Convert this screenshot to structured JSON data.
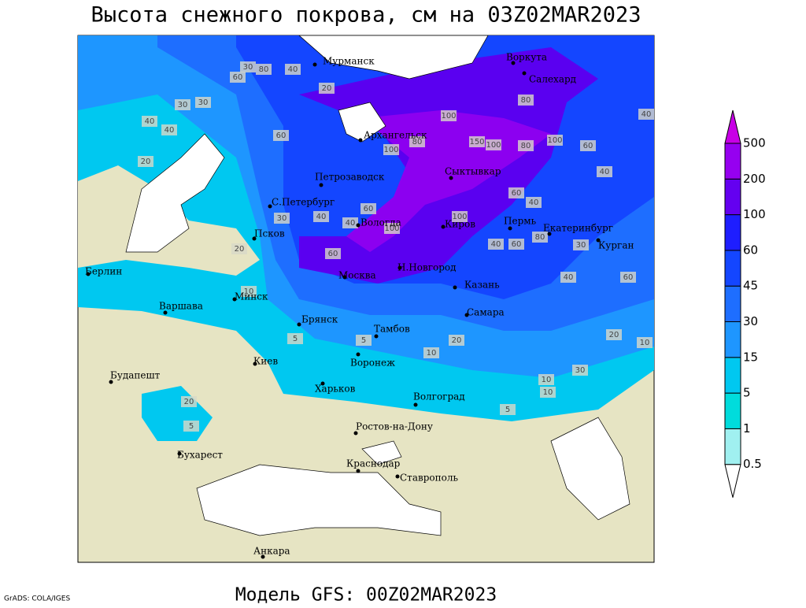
{
  "title": "Высота снежного покрова, см на 03Z02MAR2023",
  "footer": "Модель GFS: 00Z02MAR2023",
  "credit": "GrADS: COLA/IGES",
  "cities": [
    "Мурманск",
    "Воркута",
    "Салехард",
    "Архангельск",
    "Сыктывкар",
    "Петрозаводск",
    "С.Петербург",
    "Вологда",
    "Киров",
    "Пермь",
    "Екатеринбург",
    "Курган",
    "Псков",
    "Берлин",
    "Н.Новгород",
    "Москва",
    "Казань",
    "Минск",
    "Варшава",
    "Самара",
    "Брянск",
    "Тамбов",
    "Киев",
    "Воронеж",
    "Будапешт",
    "Харьков",
    "Волгоград",
    "Ростов-на-Дону",
    "Бухарест",
    "Краснодар",
    "Ставрополь",
    "Анкара"
  ],
  "contour_labels": [
    30,
    60,
    80,
    40,
    20,
    30,
    30,
    40,
    40,
    20,
    60,
    100,
    150,
    100,
    100,
    80,
    100,
    60,
    40,
    80,
    60,
    40,
    100,
    80,
    60,
    40,
    30,
    40,
    100,
    60,
    80,
    60,
    40,
    40,
    30,
    20,
    10,
    20,
    10,
    20,
    10,
    5,
    5,
    10,
    5,
    10,
    30,
    20,
    60,
    40,
    5
  ],
  "colorbar": {
    "levels": [
      0.5,
      1,
      5,
      15,
      30,
      45,
      60,
      100,
      200,
      500
    ],
    "colors": [
      "#ffffff",
      "#a0f0f0",
      "#00dcdc",
      "#00c8f0",
      "#1e96ff",
      "#1e6eff",
      "#1446ff",
      "#1e1eff",
      "#6400f0",
      "#9600f0",
      "#c800e6"
    ]
  }
}
